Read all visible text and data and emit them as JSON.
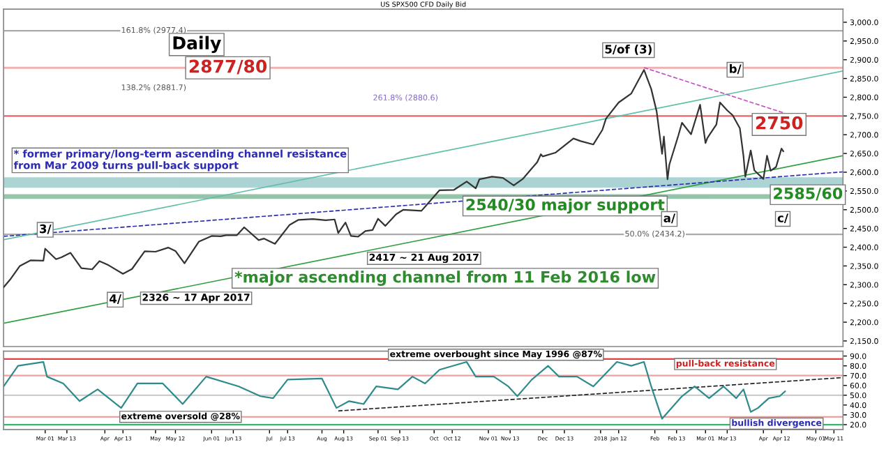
{
  "chart_data": [
    {
      "type": "line",
      "title": "US SPX500 CFD Daily Bid",
      "xlim": [
        "2017-02-06",
        "2018-05-16"
      ],
      "ylim": [
        2135,
        3035
      ],
      "yticks": [
        {
          "value": 2150,
          "label": "2,150.0"
        },
        {
          "value": 2200,
          "label": "2,200.0"
        },
        {
          "value": 2250,
          "label": "2,250.0"
        },
        {
          "value": 2300,
          "label": "2,300.0"
        },
        {
          "value": 2350,
          "label": "2,350.0"
        },
        {
          "value": 2400,
          "label": "2,400.0"
        },
        {
          "value": 2450,
          "label": "2,450.0"
        },
        {
          "value": 2500,
          "label": "2,500.0"
        },
        {
          "value": 2550,
          "label": "2,550.0"
        },
        {
          "value": 2600,
          "label": "2,600.0"
        },
        {
          "value": 2650,
          "label": "2,650.0"
        },
        {
          "value": 2700,
          "label": "2,700.0"
        },
        {
          "value": 2750,
          "label": "2,750.0"
        },
        {
          "value": 2800,
          "label": "2,800.0"
        },
        {
          "value": 2850,
          "label": "2,850.0"
        },
        {
          "value": 2900,
          "label": "2,900.0"
        },
        {
          "value": 2950,
          "label": "2,950.0"
        },
        {
          "value": 3000,
          "label": "3,000.0"
        }
      ],
      "tick_labels": "y",
      "series": [
        {
          "color": "#333333",
          "x": [
            "2017-02-06",
            "2017-02-10",
            "2017-02-15",
            "2017-02-21",
            "2017-02-28",
            "2017-03-01",
            "2017-03-07",
            "2017-03-10",
            "2017-03-15",
            "2017-03-21",
            "2017-03-27",
            "2017-03-31",
            "2017-04-05",
            "2017-04-13",
            "2017-04-18",
            "2017-04-25",
            "2017-05-01",
            "2017-05-08",
            "2017-05-12",
            "2017-05-17",
            "2017-05-25",
            "2017-06-01",
            "2017-06-06",
            "2017-06-09",
            "2017-06-15",
            "2017-06-19",
            "2017-06-27",
            "2017-06-30",
            "2017-07-06",
            "2017-07-14",
            "2017-07-19",
            "2017-07-27",
            "2017-08-03",
            "2017-08-08",
            "2017-08-10",
            "2017-08-14",
            "2017-08-17",
            "2017-08-21",
            "2017-08-25",
            "2017-08-29",
            "2017-09-01",
            "2017-09-05",
            "2017-09-11",
            "2017-09-15",
            "2017-09-25",
            "2017-09-29",
            "2017-10-05",
            "2017-10-13",
            "2017-10-20",
            "2017-10-25",
            "2017-10-27",
            "2017-11-03",
            "2017-11-09",
            "2017-11-15",
            "2017-11-20",
            "2017-11-28",
            "2017-11-30",
            "2017-12-01",
            "2017-12-08",
            "2017-12-18",
            "2017-12-22",
            "2017-12-29",
            "2018-01-03",
            "2018-01-05",
            "2018-01-12",
            "2018-01-19",
            "2018-01-26",
            "2018-01-30",
            "2018-02-02",
            "2018-02-05",
            "2018-02-06",
            "2018-02-08",
            "2018-02-09",
            "2018-02-14",
            "2018-02-16",
            "2018-02-21",
            "2018-02-26",
            "2018-03-01",
            "2018-03-02",
            "2018-03-07",
            "2018-03-09",
            "2018-03-13",
            "2018-03-16",
            "2018-03-20",
            "2018-03-22",
            "2018-03-23",
            "2018-03-26",
            "2018-03-28",
            "2018-04-02",
            "2018-04-04",
            "2018-04-06",
            "2018-04-09",
            "2018-04-12",
            "2018-04-13"
          ],
          "values": [
            2293,
            2316,
            2350,
            2365,
            2364,
            2396,
            2368,
            2373,
            2385,
            2344,
            2341,
            2363,
            2352,
            2329,
            2342,
            2389,
            2388,
            2399,
            2390,
            2357,
            2415,
            2430,
            2429,
            2432,
            2432,
            2453,
            2419,
            2423,
            2409,
            2459,
            2473,
            2475,
            2472,
            2474,
            2438,
            2466,
            2430,
            2428,
            2443,
            2446,
            2476,
            2457,
            2488,
            2500,
            2497,
            2519,
            2552,
            2553,
            2575,
            2557,
            2581,
            2588,
            2585,
            2565,
            2582,
            2627,
            2648,
            2642,
            2652,
            2690,
            2683,
            2674,
            2713,
            2743,
            2786,
            2810,
            2873,
            2822,
            2762,
            2649,
            2695,
            2581,
            2620,
            2698,
            2732,
            2701,
            2780,
            2678,
            2691,
            2727,
            2786,
            2765,
            2752,
            2717,
            2643,
            2588,
            2658,
            2605,
            2582,
            2644,
            2604,
            2614,
            2663,
            2656
          ]
        },
        {
          "color": "#2e9e3e",
          "x": [
            "2017-02-06",
            "2018-05-16"
          ],
          "values": [
            2197,
            2644
          ]
        },
        {
          "color": "#2b2bb3",
          "line_style": "dashed",
          "x": [
            "2017-02-06",
            "2018-05-16"
          ],
          "values": [
            2429,
            2601
          ]
        },
        {
          "color": "#5fbfa8",
          "x": [
            "2017-02-06",
            "2018-05-16"
          ],
          "values": [
            2420,
            2870
          ]
        },
        {
          "color": "#c44fc4",
          "line_style": "dashed",
          "x": [
            "2018-01-26",
            "2018-04-14"
          ],
          "values": [
            2879,
            2757
          ]
        }
      ],
      "ref_lines": [
        {
          "axis": "y",
          "value": 2977.4,
          "label": "161.8% (2977.4)",
          "color": "#aaaaaa"
        },
        {
          "axis": "y",
          "value": 2750,
          "label": "2750",
          "color": "#e06666"
        },
        {
          "axis": "y",
          "value": 2434.2,
          "label": "50.0% (2434.2)",
          "color": "#aaaaaa"
        }
      ],
      "bands": [
        {
          "axis": "y",
          "from": 2877,
          "to": 2880,
          "label": "2877/80",
          "color": "#e06666"
        },
        {
          "axis": "y",
          "from": 2560,
          "to": 2585,
          "label": "2585/60",
          "color": "#5aa9a9"
        },
        {
          "axis": "y",
          "from": 2530,
          "to": 2540,
          "label": "2540/30 major support",
          "color": "#2e8b57"
        }
      ],
      "annotations": [
        "Daily",
        "138.2% (2881.7)",
        "261.8% (2880.6)",
        "* former primary/long-term ascending channel resistance\nfrom Mar 2009 turns pull-back support",
        "*major ascending channel from 11 Feb 2016 low",
        {
          "text": "3/",
          "x": "2017-03-01",
          "y": 2400
        },
        {
          "text": "4/",
          "x": "2017-04-13",
          "y": 2322
        },
        {
          "text": "2326 ~ 17 Apr 2017",
          "x": "2017-04-17",
          "y": 2326
        },
        {
          "text": "2417 ~ 21 Aug 2017",
          "x": "2017-08-21",
          "y": 2417
        },
        {
          "text": "5/of (3)",
          "x": "2018-01-26",
          "y": 2879
        },
        {
          "text": "a/",
          "x": "2018-02-09",
          "y": 2532
        },
        {
          "text": "b/",
          "x": "2018-03-12",
          "y": 2801
        },
        {
          "text": "c/",
          "x": "2018-04-02",
          "y": 2553
        }
      ]
    },
    {
      "type": "line",
      "xlim": [
        "2017-02-06",
        "2018-05-16"
      ],
      "ylim": [
        15,
        95
      ],
      "yticks": [
        {
          "value": 20,
          "label": "20.0"
        },
        {
          "value": 30,
          "label": "30.0"
        },
        {
          "value": 40,
          "label": "40.0"
        },
        {
          "value": 50,
          "label": "50.0"
        },
        {
          "value": 60,
          "label": "60.0"
        },
        {
          "value": 70,
          "label": "70.0"
        },
        {
          "value": 80,
          "label": "80.0"
        },
        {
          "value": 90,
          "label": "90.0"
        }
      ],
      "xticks": [
        {
          "value": "2017-03-01",
          "label": "Mar 01"
        },
        {
          "value": "2017-03-13",
          "label": "Mar 13"
        },
        {
          "value": "2017-04-03",
          "label": "Apr"
        },
        {
          "value": "2017-04-13",
          "label": "Apr 13"
        },
        {
          "value": "2017-05-01",
          "label": "May"
        },
        {
          "value": "2017-05-12",
          "label": "May 12"
        },
        {
          "value": "2017-06-01",
          "label": "Jun 01"
        },
        {
          "value": "2017-06-13",
          "label": "Jun 13"
        },
        {
          "value": "2017-07-03",
          "label": "Jul"
        },
        {
          "value": "2017-07-13",
          "label": "Jul 13"
        },
        {
          "value": "2017-08-01",
          "label": "Aug"
        },
        {
          "value": "2017-08-13",
          "label": "Aug 13"
        },
        {
          "value": "2017-09-01",
          "label": "Sep 01"
        },
        {
          "value": "2017-09-13",
          "label": "Sep 13"
        },
        {
          "value": "2017-10-02",
          "label": "Oct"
        },
        {
          "value": "2017-10-12",
          "label": "Oct 12"
        },
        {
          "value": "2017-11-01",
          "label": "Nov 01"
        },
        {
          "value": "2017-11-13",
          "label": "Nov 13"
        },
        {
          "value": "2017-12-01",
          "label": "Dec"
        },
        {
          "value": "2017-12-13",
          "label": "Dec 13"
        },
        {
          "value": "2018-01-02",
          "label": "2018"
        },
        {
          "value": "2018-01-12",
          "label": "Jan 12"
        },
        {
          "value": "2018-02-01",
          "label": "Feb"
        },
        {
          "value": "2018-02-13",
          "label": "Feb 13"
        },
        {
          "value": "2018-03-01",
          "label": "Mar 01"
        },
        {
          "value": "2018-03-13",
          "label": "Mar 13"
        },
        {
          "value": "2018-04-02",
          "label": "Apr"
        },
        {
          "value": "2018-04-12",
          "label": "Apr 12"
        },
        {
          "value": "2018-05-01",
          "label": "May 01"
        },
        {
          "value": "2018-05-11",
          "label": "May 11"
        }
      ],
      "series": [
        {
          "color": "#2e8b8b",
          "x": [
            "2017-02-06",
            "2017-02-14",
            "2017-02-28",
            "2017-03-02",
            "2017-03-11",
            "2017-03-20",
            "2017-03-30",
            "2017-04-12",
            "2017-04-21",
            "2017-05-05",
            "2017-05-16",
            "2017-05-29",
            "2017-06-16",
            "2017-06-28",
            "2017-07-05",
            "2017-07-13",
            "2017-08-01",
            "2017-08-09",
            "2017-08-16",
            "2017-08-24",
            "2017-08-31",
            "2017-09-12",
            "2017-09-20",
            "2017-09-27",
            "2017-10-05",
            "2017-10-20",
            "2017-10-25",
            "2017-11-04",
            "2017-11-12",
            "2017-11-17",
            "2017-11-25",
            "2017-12-04",
            "2017-12-10",
            "2017-12-20",
            "2017-12-29",
            "2018-01-11",
            "2018-01-19",
            "2018-01-26",
            "2018-01-30",
            "2018-02-05",
            "2018-02-16",
            "2018-02-23",
            "2018-03-03",
            "2018-03-11",
            "2018-03-18",
            "2018-03-22",
            "2018-03-26",
            "2018-03-30",
            "2018-04-05",
            "2018-04-11",
            "2018-04-14"
          ],
          "values": [
            59,
            80,
            84,
            69,
            62,
            44,
            56,
            37,
            62,
            62,
            41,
            69,
            59,
            49,
            47,
            66,
            67,
            37,
            44,
            41,
            59,
            56,
            69,
            62,
            76,
            84,
            69,
            69,
            59,
            49,
            66,
            80,
            69,
            69,
            59,
            84,
            80,
            84,
            59,
            26,
            49,
            59,
            47,
            59,
            47,
            56,
            33,
            37,
            47,
            49,
            54
          ]
        },
        {
          "color": "#222222",
          "line_style": "dashed",
          "x": [
            "2017-08-10",
            "2018-05-16"
          ],
          "values": [
            34,
            68
          ]
        }
      ],
      "ref_lines": [
        {
          "axis": "y",
          "value": 87,
          "label": "extreme overbought since May 1996 @87%",
          "color": "#e04040"
        },
        {
          "axis": "y",
          "value": 70,
          "color": "#f0a0a0"
        },
        {
          "axis": "y",
          "value": 50,
          "color": "#cccccc"
        },
        {
          "axis": "y",
          "value": 28,
          "label": "extreme oversold @28%",
          "color": "#f0a0a0"
        },
        {
          "axis": "y",
          "value": 20,
          "color": "#3cb371"
        }
      ],
      "annotations": [
        {
          "text": "pull-back resistance",
          "x": "2018-03-12",
          "y": 64
        },
        {
          "text": "bullish divergence",
          "x": "2018-04-05",
          "y": 31
        }
      ]
    }
  ]
}
